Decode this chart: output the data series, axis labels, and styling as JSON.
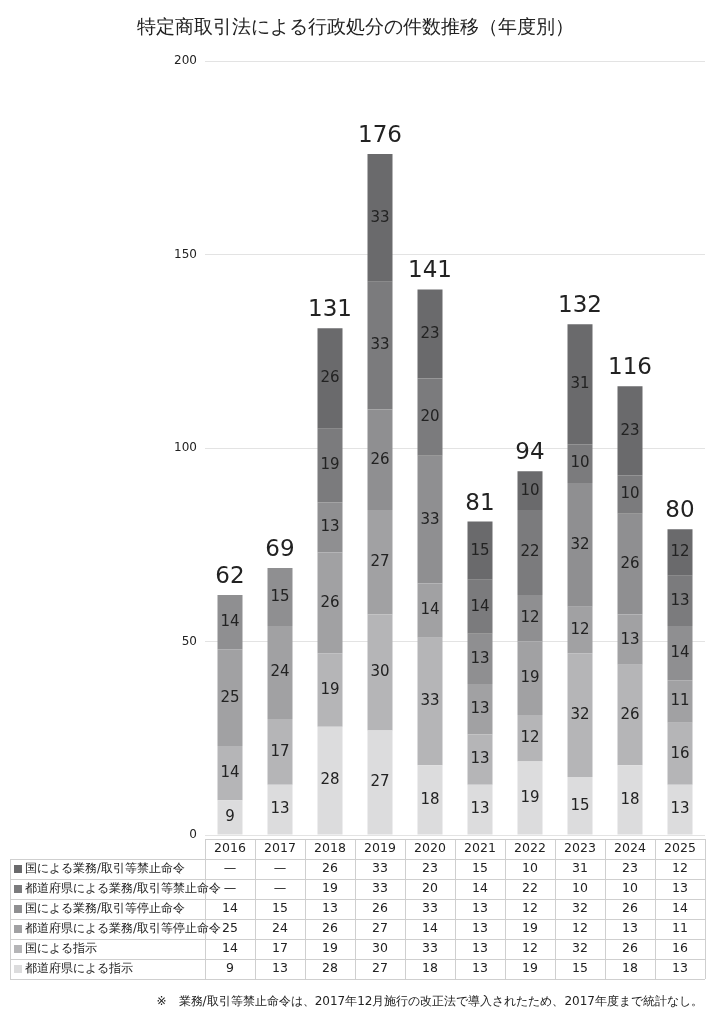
{
  "chart_data": {
    "type": "bar",
    "stacked": true,
    "title": "特定商取引法による行政処分の件数推移（年度別）",
    "categories": [
      "2016",
      "2017",
      "2018",
      "2019",
      "2020",
      "2021",
      "2022",
      "2023",
      "2024",
      "2025"
    ],
    "ylim": [
      0,
      200
    ],
    "yticks": [
      0,
      50,
      100,
      150,
      200
    ],
    "grid": "y",
    "legend": "bottom",
    "series": [
      {
        "name": "都道府県による指示",
        "color": "#dcdcdd",
        "values": [
          9,
          13,
          28,
          27,
          18,
          13,
          19,
          15,
          18,
          13
        ],
        "value_labels": [
          "9",
          "13",
          "28",
          "27",
          "18",
          "13",
          "19",
          "15",
          "18",
          "13"
        ]
      },
      {
        "name": "国による指示",
        "color": "#b5b5b7",
        "values": [
          14,
          17,
          19,
          30,
          33,
          13,
          12,
          32,
          26,
          16
        ],
        "value_labels": [
          "14",
          "17",
          "19",
          "30",
          "33",
          "13",
          "12",
          "32",
          "26",
          "16"
        ]
      },
      {
        "name": "都道府県による業務/取引等停止命令",
        "color": "#a1a1a3",
        "values": [
          25,
          24,
          26,
          27,
          14,
          13,
          19,
          12,
          13,
          11
        ],
        "value_labels": [
          "25",
          "24",
          "26",
          "27",
          "14",
          "13",
          "19",
          "12",
          "13",
          "11"
        ]
      },
      {
        "name": "国による業務/取引等停止命令",
        "color": "#8f8f91",
        "values": [
          14,
          15,
          13,
          26,
          33,
          13,
          12,
          32,
          26,
          14
        ],
        "value_labels": [
          "14",
          "15",
          "13",
          "26",
          "33",
          "13",
          "12",
          "32",
          "26",
          "14"
        ]
      },
      {
        "name": "都道府県による業務/取引等禁止命令",
        "color": "#7b7b7d",
        "values": [
          null,
          null,
          19,
          33,
          20,
          14,
          22,
          10,
          10,
          13
        ],
        "value_labels": [
          "—",
          "—",
          "19",
          "33",
          "20",
          "14",
          "22",
          "10",
          "10",
          "13"
        ]
      },
      {
        "name": "国による業務/取引等禁止命令",
        "color": "#6a6a6c",
        "values": [
          null,
          null,
          26,
          33,
          23,
          15,
          10,
          31,
          23,
          12
        ],
        "value_labels": [
          "—",
          "—",
          "26",
          "33",
          "23",
          "15",
          "10",
          "31",
          "23",
          "12"
        ]
      }
    ],
    "totals": [
      "62",
      "69",
      "131",
      "176",
      "141",
      "81",
      "94",
      "132",
      "116",
      "80"
    ],
    "annotations": [
      "※　業務/取引等禁止命令は、2017年12月施行の改正法で導入されたため、2017年度まで統計なし。"
    ]
  }
}
